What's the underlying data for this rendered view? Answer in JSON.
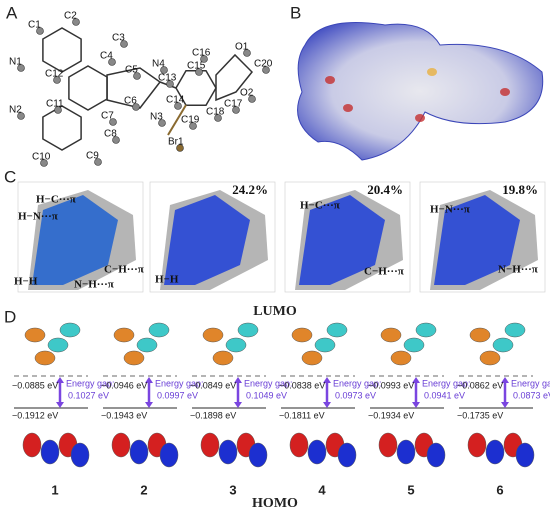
{
  "panels": {
    "A": {
      "label": "A",
      "atoms": [
        "C1",
        "C2",
        "C3",
        "C4",
        "N1",
        "C12",
        "C5",
        "N4",
        "C13",
        "C15",
        "C16",
        "O1",
        "C20",
        "O2",
        "N2",
        "C11",
        "C6",
        "N3",
        "C14",
        "C17",
        "C18",
        "C19",
        "C8",
        "C7",
        "C9",
        "C10",
        "Br1"
      ]
    },
    "B": {
      "label": "B"
    },
    "C": {
      "label": "C",
      "plots": [
        {
          "labels": [
            "H−C···π",
            "H−N···π",
            "H−H",
            "N−H···π",
            "C−H···π"
          ]
        },
        {
          "percent": "24.2%",
          "labels": [
            "H−H"
          ]
        },
        {
          "percent": "20.4%",
          "labels": [
            "H−C···π",
            "C−H···π"
          ]
        },
        {
          "percent": "19.8%",
          "labels": [
            "H−N···π",
            "N−H···π"
          ]
        }
      ]
    },
    "D": {
      "label": "D",
      "lumo_title": "LUMO",
      "homo_title": "HOMO",
      "compounds": [
        {
          "name": "1",
          "lumo": "−0.0885 eV",
          "homo": "−0.1912 eV",
          "gap_label": "Energy gap:",
          "gap": "0.1027 eV"
        },
        {
          "name": "2",
          "lumo": "−0.0946 eV",
          "homo": "−0.1943 eV",
          "gap_label": "Energy gap:",
          "gap": "0.0997 eV"
        },
        {
          "name": "3",
          "lumo": "−0.0849 eV",
          "homo": "−0.1898 eV",
          "gap_label": "Energy gap:",
          "gap": "0.1049 eV"
        },
        {
          "name": "4",
          "lumo": "−0.0838 eV",
          "homo": "−0.1811 eV",
          "gap_label": "Energy gap:",
          "gap": "0.0973 eV"
        },
        {
          "name": "5",
          "lumo": "−0.0993 eV",
          "homo": "−0.1934 eV",
          "gap_label": "Energy gap:",
          "gap": "0.0941 eV"
        },
        {
          "name": "6",
          "lumo": "−0.0862 eV",
          "homo": "−0.1735 eV",
          "gap_label": "Energy gap:",
          "gap": "0.0873 eV"
        }
      ]
    }
  }
}
